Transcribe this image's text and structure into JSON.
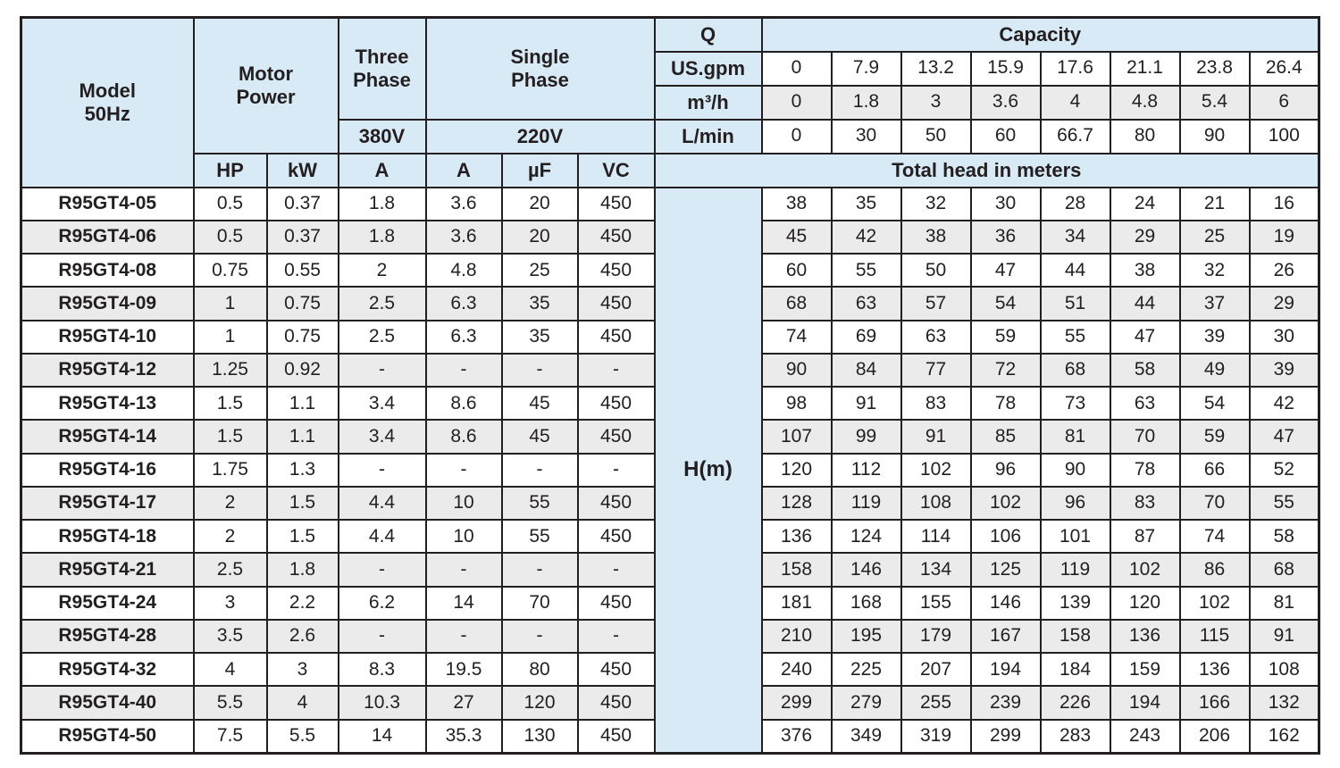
{
  "colors": {
    "border": "#231f20",
    "header_blue": "#d9eaf7",
    "stripe_gray": "#ebebeb",
    "text": "#231f20",
    "background": "#ffffff"
  },
  "table": {
    "header": {
      "model_label": "Model\n50Hz",
      "motor_power_label": "Motor\nPower",
      "three_phase_label": "Three\nPhase",
      "single_phase_label": "Single\nPhase",
      "v380_label": "380V",
      "v220_label": "220V",
      "hp_label": "HP",
      "kw_label": "kW",
      "a3_label": "A",
      "a1_label": "A",
      "uf_label": "µF",
      "vc_label": "VC",
      "q_label": "Q",
      "capacity_label": "Capacity",
      "us_gpm_label": "US.gpm",
      "m3h_label": "m³/h",
      "lmin_label": "L/min",
      "total_head_label": "Total head in meters",
      "hm_label": "H(m)"
    },
    "capacity": {
      "us_gpm": [
        "0",
        "7.9",
        "13.2",
        "15.9",
        "17.6",
        "21.1",
        "23.8",
        "26.4"
      ],
      "m3h": [
        "0",
        "1.8",
        "3",
        "3.6",
        "4",
        "4.8",
        "5.4",
        "6"
      ],
      "lmin": [
        "0",
        "30",
        "50",
        "60",
        "66.7",
        "80",
        "90",
        "100"
      ]
    },
    "rows": [
      {
        "model": "R95GT4-05",
        "hp": "0.5",
        "kw": "0.37",
        "a3": "1.8",
        "a1": "3.6",
        "uf": "20",
        "vc": "450",
        "head": [
          "38",
          "35",
          "32",
          "30",
          "28",
          "24",
          "21",
          "16"
        ]
      },
      {
        "model": "R95GT4-06",
        "hp": "0.5",
        "kw": "0.37",
        "a3": "1.8",
        "a1": "3.6",
        "uf": "20",
        "vc": "450",
        "head": [
          "45",
          "42",
          "38",
          "36",
          "34",
          "29",
          "25",
          "19"
        ]
      },
      {
        "model": "R95GT4-08",
        "hp": "0.75",
        "kw": "0.55",
        "a3": "2",
        "a1": "4.8",
        "uf": "25",
        "vc": "450",
        "head": [
          "60",
          "55",
          "50",
          "47",
          "44",
          "38",
          "32",
          "26"
        ]
      },
      {
        "model": "R95GT4-09",
        "hp": "1",
        "kw": "0.75",
        "a3": "2.5",
        "a1": "6.3",
        "uf": "35",
        "vc": "450",
        "head": [
          "68",
          "63",
          "57",
          "54",
          "51",
          "44",
          "37",
          "29"
        ]
      },
      {
        "model": "R95GT4-10",
        "hp": "1",
        "kw": "0.75",
        "a3": "2.5",
        "a1": "6.3",
        "uf": "35",
        "vc": "450",
        "head": [
          "74",
          "69",
          "63",
          "59",
          "55",
          "47",
          "39",
          "30"
        ]
      },
      {
        "model": "R95GT4-12",
        "hp": "1.25",
        "kw": "0.92",
        "a3": "-",
        "a1": "-",
        "uf": "-",
        "vc": "-",
        "head": [
          "90",
          "84",
          "77",
          "72",
          "68",
          "58",
          "49",
          "39"
        ]
      },
      {
        "model": "R95GT4-13",
        "hp": "1.5",
        "kw": "1.1",
        "a3": "3.4",
        "a1": "8.6",
        "uf": "45",
        "vc": "450",
        "head": [
          "98",
          "91",
          "83",
          "78",
          "73",
          "63",
          "54",
          "42"
        ]
      },
      {
        "model": "R95GT4-14",
        "hp": "1.5",
        "kw": "1.1",
        "a3": "3.4",
        "a1": "8.6",
        "uf": "45",
        "vc": "450",
        "head": [
          "107",
          "99",
          "91",
          "85",
          "81",
          "70",
          "59",
          "47"
        ]
      },
      {
        "model": "R95GT4-16",
        "hp": "1.75",
        "kw": "1.3",
        "a3": "-",
        "a1": "-",
        "uf": "-",
        "vc": "-",
        "head": [
          "120",
          "112",
          "102",
          "96",
          "90",
          "78",
          "66",
          "52"
        ]
      },
      {
        "model": "R95GT4-17",
        "hp": "2",
        "kw": "1.5",
        "a3": "4.4",
        "a1": "10",
        "uf": "55",
        "vc": "450",
        "head": [
          "128",
          "119",
          "108",
          "102",
          "96",
          "83",
          "70",
          "55"
        ]
      },
      {
        "model": "R95GT4-18",
        "hp": "2",
        "kw": "1.5",
        "a3": "4.4",
        "a1": "10",
        "uf": "55",
        "vc": "450",
        "head": [
          "136",
          "124",
          "114",
          "106",
          "101",
          "87",
          "74",
          "58"
        ]
      },
      {
        "model": "R95GT4-21",
        "hp": "2.5",
        "kw": "1.8",
        "a3": "-",
        "a1": "-",
        "uf": "-",
        "vc": "-",
        "head": [
          "158",
          "146",
          "134",
          "125",
          "119",
          "102",
          "86",
          "68"
        ]
      },
      {
        "model": "R95GT4-24",
        "hp": "3",
        "kw": "2.2",
        "a3": "6.2",
        "a1": "14",
        "uf": "70",
        "vc": "450",
        "head": [
          "181",
          "168",
          "155",
          "146",
          "139",
          "120",
          "102",
          "81"
        ]
      },
      {
        "model": "R95GT4-28",
        "hp": "3.5",
        "kw": "2.6",
        "a3": "-",
        "a1": "-",
        "uf": "-",
        "vc": "-",
        "head": [
          "210",
          "195",
          "179",
          "167",
          "158",
          "136",
          "115",
          "91"
        ]
      },
      {
        "model": "R95GT4-32",
        "hp": "4",
        "kw": "3",
        "a3": "8.3",
        "a1": "19.5",
        "uf": "80",
        "vc": "450",
        "head": [
          "240",
          "225",
          "207",
          "194",
          "184",
          "159",
          "136",
          "108"
        ]
      },
      {
        "model": "R95GT4-40",
        "hp": "5.5",
        "kw": "4",
        "a3": "10.3",
        "a1": "27",
        "uf": "120",
        "vc": "450",
        "head": [
          "299",
          "279",
          "255",
          "239",
          "226",
          "194",
          "166",
          "132"
        ]
      },
      {
        "model": "R95GT4-50",
        "hp": "7.5",
        "kw": "5.5",
        "a3": "14",
        "a1": "35.3",
        "uf": "130",
        "vc": "450",
        "head": [
          "376",
          "349",
          "319",
          "299",
          "283",
          "243",
          "206",
          "162"
        ]
      }
    ]
  }
}
